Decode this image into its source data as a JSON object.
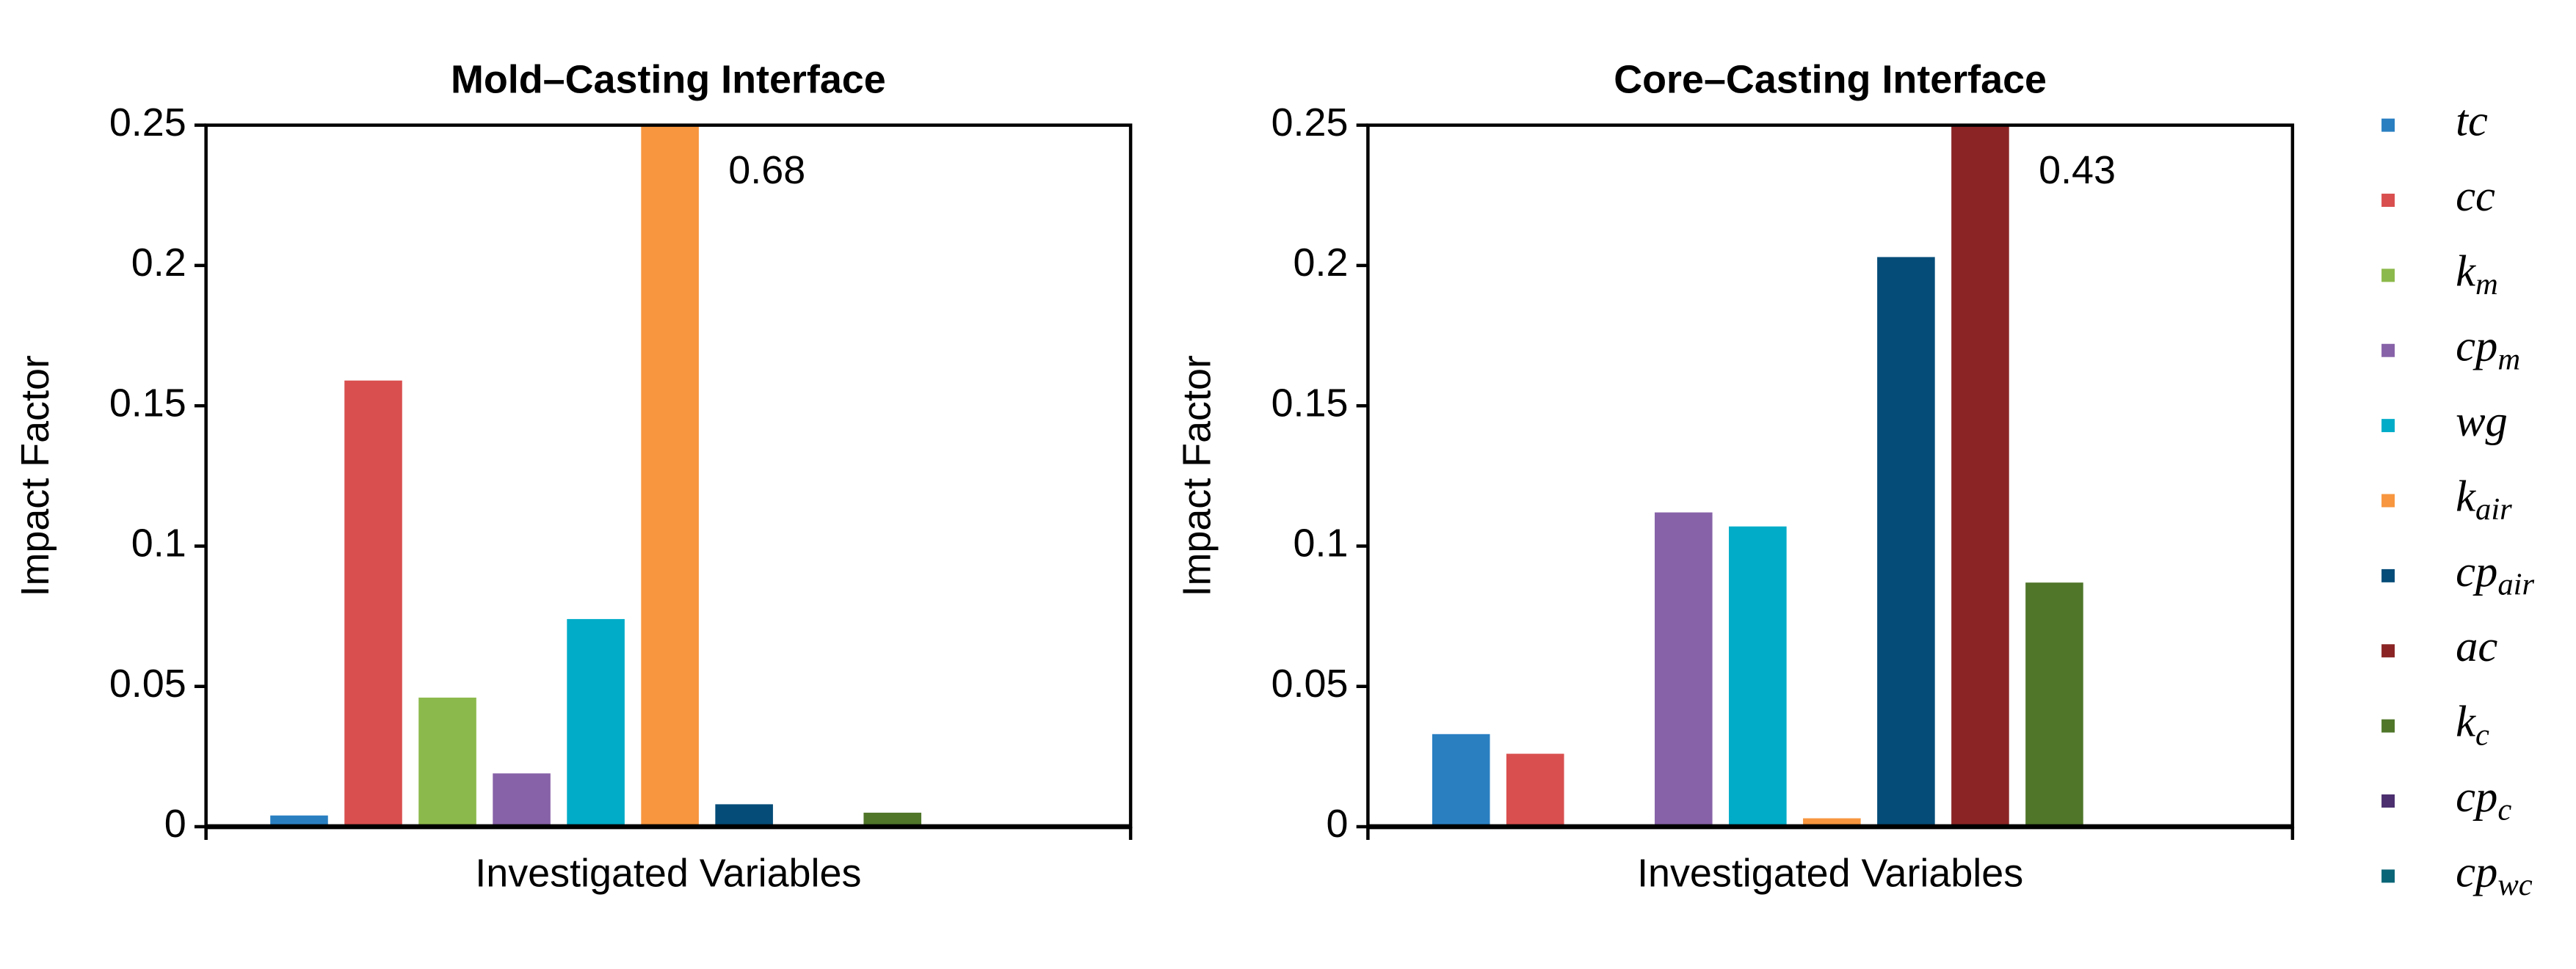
{
  "chart_data": [
    {
      "type": "bar",
      "title": "Mold–Casting Interface",
      "xlabel": "Investigated Variables",
      "ylabel": "Impact Factor",
      "values": [
        0.004,
        0.159,
        0.046,
        0.019,
        0.074,
        0.68,
        0.008,
        0,
        0.005,
        0,
        0
      ],
      "value_labels": [
        null,
        null,
        null,
        null,
        null,
        "0.68",
        null,
        null,
        null,
        null,
        null
      ],
      "ylim": [
        0,
        0.25
      ],
      "yticks": [
        0,
        0.05,
        0.1,
        0.15,
        0.2,
        0.25
      ]
    },
    {
      "type": "bar",
      "title": "Core–Casting Interface",
      "xlabel": "Investigated Variables",
      "ylabel": "Impact Factor",
      "values": [
        0.033,
        0.026,
        0,
        0.112,
        0.107,
        0.003,
        0.203,
        0.43,
        0.087,
        0,
        0
      ],
      "value_labels": [
        null,
        null,
        null,
        null,
        null,
        null,
        null,
        "0.43",
        null,
        null,
        null
      ],
      "ylim": [
        0,
        0.25
      ],
      "yticks": [
        0,
        0.05,
        0.1,
        0.15,
        0.2,
        0.25
      ]
    }
  ],
  "legend": [
    {
      "name": "tc",
      "color": "#2a7fc1"
    },
    {
      "name": "cc",
      "color": "#d94f4f"
    },
    {
      "name": "k",
      "sub": "m",
      "color": "#8cb94b"
    },
    {
      "name": "cp",
      "sub": "m",
      "color": "#8762a8"
    },
    {
      "name": "wg",
      "color": "#00acc8"
    },
    {
      "name": "k",
      "sub": "air",
      "color": "#f7963f"
    },
    {
      "name": "cp",
      "sub": "air",
      "color": "#054c78"
    },
    {
      "name": "ac",
      "color": "#8b2525"
    },
    {
      "name": "k",
      "sub": "c",
      "color": "#4f7629"
    },
    {
      "name": "cp",
      "sub": "c",
      "color": "#4b2f6e"
    },
    {
      "name": "cp",
      "sub": "wc",
      "color": "#0a6677"
    }
  ]
}
